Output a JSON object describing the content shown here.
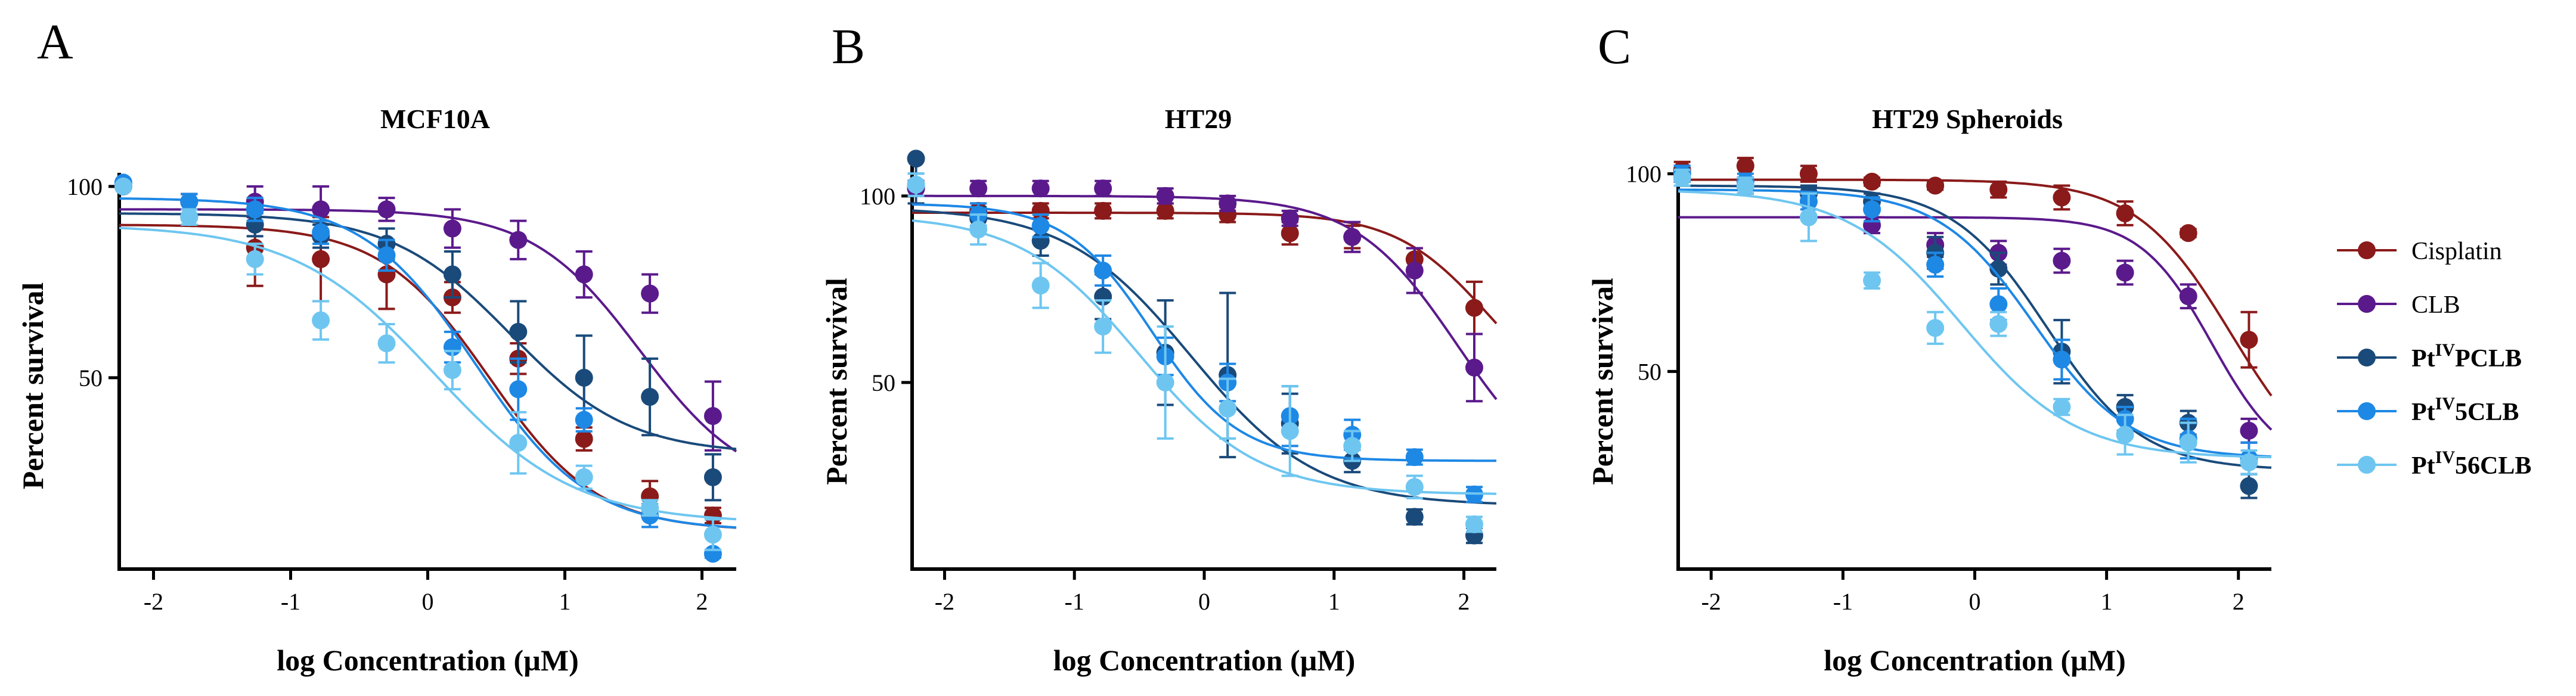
{
  "figure": {
    "panel_letters": [
      "A",
      "B",
      "C"
    ],
    "legend": [
      {
        "key": "cis",
        "label": "Cisplatin",
        "pre": "",
        "sup": "",
        "post": "",
        "bold": false,
        "color": "#8B1A1A"
      },
      {
        "key": "clb",
        "label": "CLB",
        "pre": "",
        "sup": "",
        "post": "",
        "bold": false,
        "color": "#5B1A8C"
      },
      {
        "key": "pclb",
        "label": "PtIVPCLB",
        "pre": "Pt",
        "sup": "IV",
        "post": "PCLB",
        "bold": true,
        "color": "#1A4A7A"
      },
      {
        "key": "p5",
        "label": "PtIV5CLB",
        "pre": "Pt",
        "sup": "IV",
        "post": "5CLB",
        "bold": true,
        "color": "#1E88E5"
      },
      {
        "key": "p56",
        "label": "PtIV56CLB",
        "pre": "Pt",
        "sup": "IV",
        "post": "56CLB",
        "bold": true,
        "color": "#6EC6F0"
      }
    ]
  },
  "chart_data": [
    {
      "type": "scatter",
      "title": "MCF10A",
      "xlabel": "log Concentration (µM)",
      "ylabel": "Percent survival",
      "xlim": [
        -2.25,
        2.25
      ],
      "ylim": [
        0,
        102
      ],
      "xticks": [
        -2,
        -1,
        0,
        1,
        2
      ],
      "yticks": [
        50,
        100
      ],
      "x": [
        -2.22,
        -1.74,
        -1.26,
        -0.78,
        -0.3,
        0.18,
        0.66,
        1.14,
        1.62,
        2.08
      ],
      "series": [
        {
          "key": "cis",
          "name": "Cisplatin",
          "values": [
            100,
            96,
            84,
            81,
            77,
            71,
            55,
            34,
            19,
            14
          ],
          "errors": [
            0,
            2,
            10,
            11,
            9,
            4,
            4,
            3,
            4,
            2
          ],
          "fit": {
            "top": 90,
            "bottom": 10,
            "logec50": 0.45,
            "hill": 1.1
          }
        },
        {
          "key": "clb",
          "name": "CLB",
          "values": [
            100,
            96,
            96,
            94,
            94,
            89,
            86,
            77,
            72,
            40
          ],
          "errors": [
            0,
            2,
            4,
            6,
            3,
            5,
            5,
            6,
            5,
            9
          ],
          "fit": {
            "top": 94,
            "bottom": 20,
            "logec50": 1.55,
            "hill": 1.1
          }
        },
        {
          "key": "pclb",
          "name": "PtIVPCLB",
          "values": [
            100,
            92,
            90,
            87,
            85,
            77,
            62,
            50,
            45,
            24
          ],
          "errors": [
            0,
            2,
            3,
            3,
            4,
            6,
            8,
            11,
            10,
            6
          ],
          "fit": {
            "top": 93,
            "bottom": 30,
            "logec50": 0.6,
            "hill": 1.0
          }
        },
        {
          "key": "p5",
          "name": "PtIV5CLB",
          "values": [
            101,
            96,
            94,
            88,
            82,
            58,
            47,
            39,
            14,
            4
          ],
          "errors": [
            0,
            2,
            3,
            3,
            4,
            4,
            8,
            3,
            3,
            1
          ],
          "fit": {
            "top": 97,
            "bottom": 10,
            "logec50": 0.35,
            "hill": 1.05
          }
        },
        {
          "key": "p56",
          "name": "PtIV56CLB",
          "values": [
            100,
            92,
            81,
            65,
            59,
            52,
            33,
            24,
            16,
            9
          ],
          "errors": [
            0,
            2,
            4,
            5,
            5,
            5,
            8,
            3,
            2,
            4
          ],
          "fit": {
            "top": 90,
            "bottom": 12,
            "logec50": 0.05,
            "hill": 0.85
          }
        }
      ]
    },
    {
      "type": "scatter",
      "title": "HT29",
      "xlabel": "log Concentration (µM)",
      "ylabel": "Percent survival",
      "xlim": [
        -2.25,
        2.25
      ],
      "ylim": [
        0,
        107
      ],
      "xticks": [
        -2,
        -1,
        0,
        1,
        2
      ],
      "yticks": [
        50,
        100
      ],
      "x": [
        -2.22,
        -1.74,
        -1.26,
        -0.78,
        -0.3,
        0.18,
        0.66,
        1.14,
        1.62,
        2.08
      ],
      "series": [
        {
          "key": "cis",
          "name": "Cisplatin",
          "values": [
            102,
            96,
            96,
            96,
            96,
            95,
            90,
            89,
            83,
            70
          ],
          "errors": [
            2,
            2,
            2,
            2,
            2,
            2,
            3,
            3,
            3,
            7
          ],
          "fit": {
            "top": 95.5,
            "bottom": 40,
            "logec50": 2.2,
            "hill": 1.2
          }
        },
        {
          "key": "clb",
          "name": "CLB",
          "values": [
            102,
            102,
            102,
            102,
            100,
            98,
            94,
            89,
            80,
            54
          ],
          "errors": [
            2,
            2,
            2,
            2,
            2,
            2,
            2,
            4,
            6,
            9
          ],
          "fit": {
            "top": 100,
            "bottom": 20,
            "logec50": 1.95,
            "hill": 1.1
          }
        },
        {
          "key": "pclb",
          "name": "PtIVPCLB",
          "values": [
            110,
            94,
            88,
            73,
            58,
            52,
            39,
            29,
            14,
            9
          ],
          "errors": [
            12,
            3,
            4,
            6,
            14,
            22,
            8,
            3,
            2,
            2
          ],
          "fit": {
            "top": 97,
            "bottom": 17,
            "logec50": -0.1,
            "hill": 0.9
          }
        },
        {
          "key": "p5",
          "name": "PtIV5CLB",
          "values": [
            103,
            95,
            92,
            80,
            57,
            50,
            41,
            36,
            30,
            20
          ],
          "errors": [
            3,
            3,
            3,
            4,
            5,
            5,
            8,
            4,
            2,
            2
          ],
          "fit": {
            "top": 98,
            "bottom": 29,
            "logec50": -0.4,
            "hill": 1.3
          }
        },
        {
          "key": "p56",
          "name": "PtIV56CLB",
          "values": [
            103,
            91,
            76,
            65,
            50,
            43,
            37,
            33,
            22,
            12
          ],
          "errors": [
            3,
            4,
            6,
            7,
            15,
            8,
            12,
            4,
            3,
            2
          ],
          "fit": {
            "top": 95,
            "bottom": 20,
            "logec50": -0.5,
            "hill": 0.95
          }
        }
      ]
    },
    {
      "type": "scatter",
      "title": "HT29 Spheroids",
      "xlabel": "log Concentration (µM)",
      "ylabel": "Percent survival",
      "xlim": [
        -2.25,
        2.25
      ],
      "ylim": [
        0,
        101
      ],
      "xticks": [
        -2,
        -1,
        0,
        1,
        2
      ],
      "yticks": [
        50,
        100
      ],
      "x": [
        -2.22,
        -1.74,
        -1.26,
        -0.78,
        -0.3,
        0.18,
        0.66,
        1.14,
        1.62,
        2.08
      ],
      "series": [
        {
          "key": "cis",
          "name": "Cisplatin",
          "values": [
            101,
            102,
            100,
            98,
            97,
            96,
            94,
            90,
            85,
            58
          ],
          "errors": [
            2,
            3,
            2,
            1,
            1,
            2,
            3,
            3,
            1,
            7
          ],
          "fit": {
            "top": 98.5,
            "bottom": 20,
            "logec50": 1.95,
            "hill": 1.2
          }
        },
        {
          "key": "clb",
          "name": "CLB",
          "values": [
            100,
            97,
            95,
            87,
            82,
            80,
            78,
            75,
            69,
            35
          ],
          "errors": [
            2,
            2,
            2,
            2,
            3,
            3,
            3,
            3,
            3,
            3
          ],
          "fit": {
            "top": 89,
            "bottom": 25,
            "logec50": 1.8,
            "hill": 1.6
          }
        },
        {
          "key": "pclb",
          "name": "PtIVPCLB",
          "values": [
            100,
            97,
            95,
            93,
            80,
            76,
            55,
            41,
            37,
            21
          ],
          "errors": [
            2,
            2,
            2,
            2,
            4,
            4,
            8,
            3,
            3,
            3
          ],
          "fit": {
            "top": 97,
            "bottom": 25,
            "logec50": 0.55,
            "hill": 1.2
          }
        },
        {
          "key": "p5",
          "name": "PtIV5CLB",
          "values": [
            100,
            98,
            93,
            91,
            77,
            67,
            53,
            38,
            33,
            28
          ],
          "errors": [
            2,
            2,
            2,
            3,
            3,
            4,
            5,
            3,
            5,
            4
          ],
          "fit": {
            "top": 96,
            "bottom": 28,
            "logec50": 0.45,
            "hill": 1.2
          }
        },
        {
          "key": "p56",
          "name": "PtIV56CLB",
          "values": [
            99,
            97,
            89,
            73,
            61,
            62,
            41,
            34,
            32,
            27
          ],
          "errors": [
            2,
            2,
            6,
            2,
            4,
            3,
            2,
            5,
            5,
            3
          ],
          "fit": {
            "top": 96,
            "bottom": 28,
            "logec50": -0.1,
            "hill": 1.0
          }
        }
      ]
    }
  ]
}
